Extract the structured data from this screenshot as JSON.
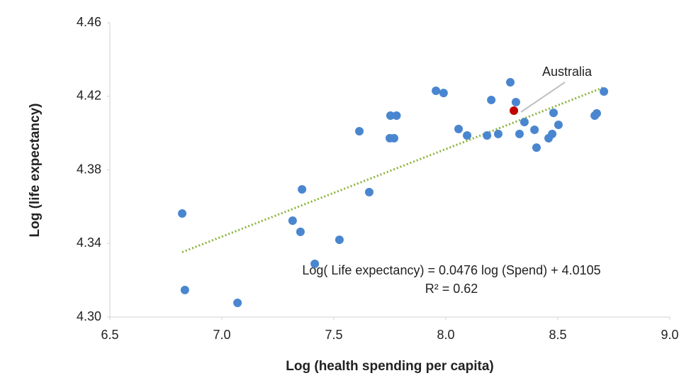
{
  "chart_data": {
    "type": "scatter",
    "x_label": "Log (health spending per capita)",
    "y_label": "Log (life expectancy)",
    "xlim": [
      6.5,
      9.0
    ],
    "ylim": [
      4.3,
      4.46
    ],
    "xticks": [
      6.5,
      {
        "value": 7.0,
        "label": "7.0"
      },
      7.5,
      {
        "value": 8.0,
        "label": "8.0"
      },
      8.5,
      {
        "value": 9.0,
        "label": "9.0"
      }
    ],
    "yticks": [
      {
        "value": 4.3,
        "label": "4.30"
      },
      4.34,
      4.38,
      4.42,
      4.46
    ],
    "grid": false,
    "series": [
      {
        "color": "#4a86d0",
        "x": [
          6.823,
          6.835,
          7.07,
          7.316,
          7.351,
          7.358,
          7.415,
          7.525,
          7.614,
          7.658,
          7.75,
          7.769,
          7.753,
          7.78,
          7.956,
          7.99,
          8.057,
          8.095,
          8.203,
          8.184,
          8.234,
          8.288,
          8.313,
          8.329,
          8.351,
          8.396,
          8.405,
          8.459,
          8.475,
          8.481,
          8.503,
          8.665,
          8.674,
          8.706
        ],
        "values": [
          4.3563,
          4.3147,
          4.3077,
          4.3524,
          4.3463,
          4.3694,
          4.3289,
          4.342,
          4.401,
          4.3679,
          4.3972,
          4.3972,
          4.4095,
          4.4095,
          4.423,
          4.4218,
          4.4022,
          4.3987,
          4.418,
          4.3987,
          4.3995,
          4.4276,
          4.4168,
          4.3995,
          4.406,
          4.4018,
          4.3921,
          4.3972,
          4.3995,
          4.411,
          4.4045,
          4.4095,
          4.4107,
          4.4226
        ]
      },
      {
        "name": "Australia",
        "color": "#c00000",
        "x": [
          8.304
        ],
        "values": [
          4.4122
        ]
      }
    ],
    "trendline": {
      "slope": 0.0476,
      "intercept": 4.0105,
      "color": "#8cb33c",
      "equation": "Log( Life expectancy) = 0.0476 log (Spend) + 4.0105",
      "r2_label": "R² = 0.62",
      "r2": 0.62
    }
  }
}
